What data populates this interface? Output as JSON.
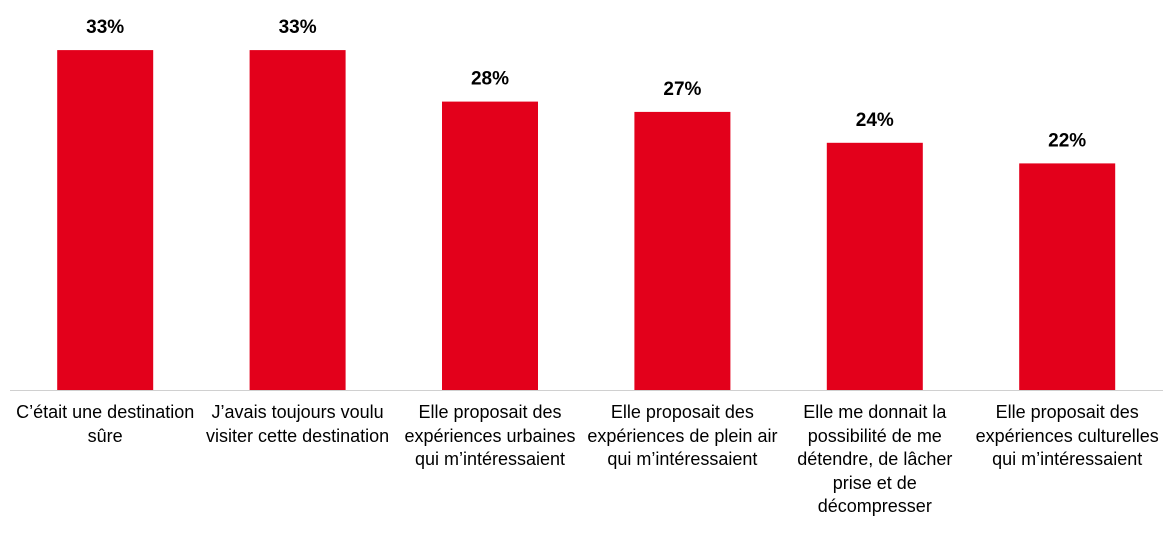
{
  "chart_data": {
    "type": "bar",
    "categories": [
      "C’était une destination sûre",
      "J’avais toujours voulu visiter cette destination",
      "Elle proposait des expériences urbaines qui m’intéressaient",
      "Elle proposait des expériences de plein air qui m’intéressaient",
      "Elle me donnait la possibilité de me détendre, de lâcher prise et de décompresser",
      "Elle proposait des expériences culturelles qui m’intéressaient"
    ],
    "values": [
      33,
      33,
      28,
      27,
      24,
      22
    ],
    "value_labels": [
      "33%",
      "33%",
      "28%",
      "27%",
      "24%",
      "22%"
    ],
    "color": "#e3001b"
  }
}
